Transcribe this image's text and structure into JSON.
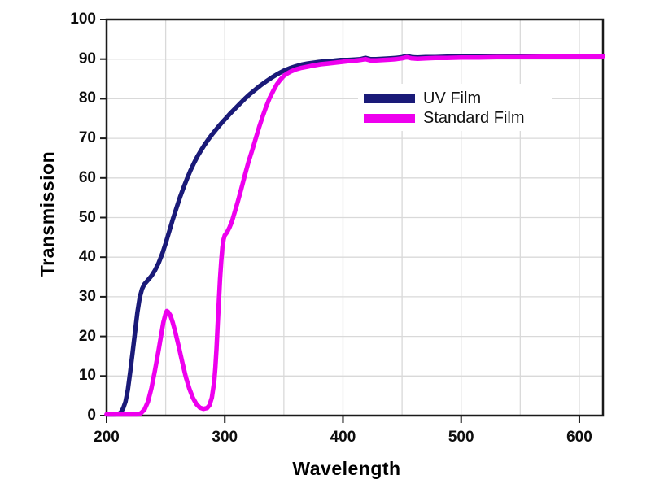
{
  "figure": {
    "background_color": "#ffffff",
    "axis_color": "#1a1a1a",
    "grid_color": "#d9d9d9",
    "text_color": "#0d0d0d"
  },
  "chart_data": {
    "type": "line",
    "title": "",
    "xlabel": "Wavelength",
    "ylabel": "Transmission",
    "xlim": [
      200,
      620
    ],
    "ylim": [
      0,
      100
    ],
    "x_ticks": [
      200,
      300,
      400,
      500,
      600
    ],
    "y_ticks": [
      0,
      10,
      20,
      30,
      40,
      50,
      60,
      70,
      80,
      90,
      100
    ],
    "grid": {
      "x_step": 50,
      "y_step": 10,
      "on": true
    },
    "legend_position": "upper center-right, no frame, white background",
    "series": [
      {
        "name": "UV Film",
        "color": "#1a1a78",
        "points": [
          [
            200,
            0.3
          ],
          [
            206,
            0.3
          ],
          [
            210,
            0.4
          ],
          [
            212,
            0.8
          ],
          [
            214,
            1.8
          ],
          [
            216,
            3.5
          ],
          [
            218,
            6.5
          ],
          [
            220,
            11
          ],
          [
            222,
            16
          ],
          [
            224,
            21
          ],
          [
            226,
            26
          ],
          [
            228,
            29.8
          ],
          [
            230,
            32
          ],
          [
            232,
            33.2
          ],
          [
            235,
            34.2
          ],
          [
            238,
            35.3
          ],
          [
            241,
            36.7
          ],
          [
            244,
            38.5
          ],
          [
            247,
            40.8
          ],
          [
            250,
            43.5
          ],
          [
            253,
            46.5
          ],
          [
            256,
            49.5
          ],
          [
            259,
            52.3
          ],
          [
            262,
            55
          ],
          [
            265,
            57.5
          ],
          [
            268,
            59.8
          ],
          [
            271,
            61.9
          ],
          [
            274,
            63.8
          ],
          [
            277,
            65.5
          ],
          [
            280,
            67
          ],
          [
            283,
            68.4
          ],
          [
            286,
            69.7
          ],
          [
            289,
            70.9
          ],
          [
            292,
            72
          ],
          [
            295,
            73.1
          ],
          [
            298,
            74.1
          ],
          [
            301,
            75.1
          ],
          [
            305,
            76.4
          ],
          [
            309,
            77.6
          ],
          [
            313,
            78.8
          ],
          [
            317,
            80
          ],
          [
            321,
            81.1
          ],
          [
            325,
            82.1
          ],
          [
            330,
            83.3
          ],
          [
            335,
            84.4
          ],
          [
            340,
            85.4
          ],
          [
            345,
            86.3
          ],
          [
            350,
            87.1
          ],
          [
            355,
            87.7
          ],
          [
            360,
            88.2
          ],
          [
            365,
            88.6
          ],
          [
            370,
            88.9
          ],
          [
            375,
            89.1
          ],
          [
            380,
            89.3
          ],
          [
            386,
            89.5
          ],
          [
            392,
            89.6
          ],
          [
            398,
            89.8
          ],
          [
            404,
            89.8
          ],
          [
            410,
            89.9
          ],
          [
            415,
            90
          ],
          [
            419,
            90.3
          ],
          [
            423,
            90
          ],
          [
            428,
            90
          ],
          [
            434,
            90.1
          ],
          [
            440,
            90.2
          ],
          [
            445,
            90.3
          ],
          [
            450,
            90.5
          ],
          [
            454,
            90.8
          ],
          [
            458,
            90.5
          ],
          [
            463,
            90.4
          ],
          [
            470,
            90.5
          ],
          [
            478,
            90.5
          ],
          [
            488,
            90.6
          ],
          [
            500,
            90.6
          ],
          [
            515,
            90.6
          ],
          [
            530,
            90.7
          ],
          [
            550,
            90.7
          ],
          [
            570,
            90.7
          ],
          [
            590,
            90.8
          ],
          [
            605,
            90.8
          ],
          [
            620,
            90.8
          ]
        ]
      },
      {
        "name": "Standard Film",
        "color": "#ee00ee",
        "points": [
          [
            200,
            0.3
          ],
          [
            210,
            0.3
          ],
          [
            220,
            0.3
          ],
          [
            226,
            0.3
          ],
          [
            229,
            0.6
          ],
          [
            232,
            1.5
          ],
          [
            235,
            3.5
          ],
          [
            238,
            7
          ],
          [
            241,
            11.5
          ],
          [
            244,
            16.5
          ],
          [
            246,
            20
          ],
          [
            248,
            23.5
          ],
          [
            250,
            25.8
          ],
          [
            251,
            26.4
          ],
          [
            252,
            26.2
          ],
          [
            254,
            25.3
          ],
          [
            256,
            23.5
          ],
          [
            258,
            21.3
          ],
          [
            261,
            17.5
          ],
          [
            264,
            13.5
          ],
          [
            267,
            9.8
          ],
          [
            270,
            6.8
          ],
          [
            273,
            4.5
          ],
          [
            276,
            2.9
          ],
          [
            279,
            2
          ],
          [
            282,
            1.7
          ],
          [
            285,
            1.9
          ],
          [
            287,
            2.6
          ],
          [
            289,
            4.5
          ],
          [
            291,
            8.5
          ],
          [
            292,
            12
          ],
          [
            293,
            17
          ],
          [
            294,
            23
          ],
          [
            295,
            29
          ],
          [
            296,
            34.5
          ],
          [
            297,
            39
          ],
          [
            298,
            42.5
          ],
          [
            299,
            44.5
          ],
          [
            300,
            45.5
          ],
          [
            302,
            46.3
          ],
          [
            304,
            47.5
          ],
          [
            306,
            49
          ],
          [
            308,
            51
          ],
          [
            311,
            54
          ],
          [
            314,
            57.3
          ],
          [
            317,
            60.7
          ],
          [
            320,
            64
          ],
          [
            323,
            66.8
          ],
          [
            326,
            69.8
          ],
          [
            329,
            72.8
          ],
          [
            332,
            75.5
          ],
          [
            335,
            78
          ],
          [
            338,
            80.2
          ],
          [
            341,
            82
          ],
          [
            344,
            83.6
          ],
          [
            347,
            84.8
          ],
          [
            350,
            85.8
          ],
          [
            353,
            86.4
          ],
          [
            356,
            86.9
          ],
          [
            360,
            87.4
          ],
          [
            365,
            87.8
          ],
          [
            370,
            88.1
          ],
          [
            375,
            88.4
          ],
          [
            381,
            88.7
          ],
          [
            387,
            88.9
          ],
          [
            393,
            89.1
          ],
          [
            399,
            89.3
          ],
          [
            405,
            89.5
          ],
          [
            410,
            89.6
          ],
          [
            415,
            89.8
          ],
          [
            419,
            90
          ],
          [
            423,
            89.7
          ],
          [
            428,
            89.7
          ],
          [
            434,
            89.8
          ],
          [
            440,
            89.9
          ],
          [
            445,
            90
          ],
          [
            450,
            90.2
          ],
          [
            454,
            90.5
          ],
          [
            458,
            90.2
          ],
          [
            463,
            90.1
          ],
          [
            470,
            90.2
          ],
          [
            478,
            90.3
          ],
          [
            488,
            90.3
          ],
          [
            500,
            90.4
          ],
          [
            515,
            90.4
          ],
          [
            530,
            90.5
          ],
          [
            550,
            90.5
          ],
          [
            570,
            90.6
          ],
          [
            590,
            90.6
          ],
          [
            605,
            90.7
          ],
          [
            620,
            90.7
          ]
        ]
      }
    ]
  }
}
